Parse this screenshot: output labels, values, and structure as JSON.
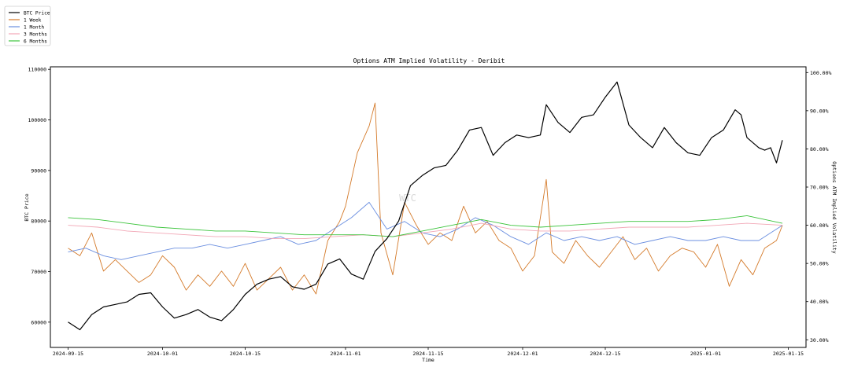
{
  "chart_data": {
    "type": "line",
    "title": "Options ATM Implied Volatility - Deribit",
    "xlabel": "Time",
    "ylabel_left": "BTC Price",
    "ylabel_right": "Options ATM Implied Volatility",
    "watermark": "WTC",
    "legend_position": "top-left",
    "grid": false,
    "x_range": [
      "2024-09-12",
      "2025-01-18"
    ],
    "left_ylim": [
      55000,
      110500
    ],
    "right_ylim": [
      28,
      101.5
    ],
    "x_ticks": [
      "2024-09-15",
      "2024-10-01",
      "2024-10-15",
      "2024-11-01",
      "2024-11-15",
      "2024-12-01",
      "2024-12-15",
      "2025-01-01",
      "2025-01-15"
    ],
    "left_ticks": [
      "60000",
      "70000",
      "80000",
      "90000",
      "100000",
      "110000"
    ],
    "right_ticks": [
      "30.00%",
      "40.00%",
      "50.00%",
      "60.00%",
      "70.00%",
      "80.00%",
      "90.00%",
      "100.00%"
    ],
    "series": [
      {
        "name": "BTC Price",
        "axis": "left",
        "color": "#000000",
        "points": [
          [
            "2024-09-15",
            60000
          ],
          [
            "2024-09-17",
            58500
          ],
          [
            "2024-09-19",
            61500
          ],
          [
            "2024-09-21",
            63000
          ],
          [
            "2024-09-23",
            63500
          ],
          [
            "2024-09-25",
            64000
          ],
          [
            "2024-09-27",
            65500
          ],
          [
            "2024-09-29",
            65800
          ],
          [
            "2024-10-01",
            63000
          ],
          [
            "2024-10-03",
            60800
          ],
          [
            "2024-10-05",
            61500
          ],
          [
            "2024-10-07",
            62500
          ],
          [
            "2024-10-09",
            61000
          ],
          [
            "2024-10-11",
            60300
          ],
          [
            "2024-10-13",
            62500
          ],
          [
            "2024-10-15",
            65500
          ],
          [
            "2024-10-17",
            67500
          ],
          [
            "2024-10-19",
            68500
          ],
          [
            "2024-10-21",
            69000
          ],
          [
            "2024-10-23",
            67000
          ],
          [
            "2024-10-25",
            66500
          ],
          [
            "2024-10-27",
            67500
          ],
          [
            "2024-10-29",
            71500
          ],
          [
            "2024-10-31",
            72500
          ],
          [
            "2024-11-02",
            69500
          ],
          [
            "2024-11-04",
            68500
          ],
          [
            "2024-11-06",
            74000
          ],
          [
            "2024-11-08",
            76500
          ],
          [
            "2024-11-10",
            80000
          ],
          [
            "2024-11-12",
            87000
          ],
          [
            "2024-11-14",
            89000
          ],
          [
            "2024-11-16",
            90500
          ],
          [
            "2024-11-18",
            91000
          ],
          [
            "2024-11-20",
            94000
          ],
          [
            "2024-11-22",
            98000
          ],
          [
            "2024-11-24",
            98500
          ],
          [
            "2024-11-26",
            93000
          ],
          [
            "2024-11-28",
            95500
          ],
          [
            "2024-11-30",
            97000
          ],
          [
            "2024-12-02",
            96500
          ],
          [
            "2024-12-04",
            97000
          ],
          [
            "2024-12-05",
            103000
          ],
          [
            "2024-12-07",
            99500
          ],
          [
            "2024-12-09",
            97500
          ],
          [
            "2024-12-11",
            100500
          ],
          [
            "2024-12-13",
            101000
          ],
          [
            "2024-12-15",
            104500
          ],
          [
            "2024-12-17",
            107500
          ],
          [
            "2024-12-19",
            99000
          ],
          [
            "2024-12-21",
            96500
          ],
          [
            "2024-12-23",
            94500
          ],
          [
            "2024-12-25",
            98500
          ],
          [
            "2024-12-27",
            95500
          ],
          [
            "2024-12-29",
            93500
          ],
          [
            "2024-12-31",
            93000
          ],
          [
            "2025-01-02",
            96500
          ],
          [
            "2025-01-04",
            98000
          ],
          [
            "2025-01-06",
            102000
          ],
          [
            "2025-01-07",
            101000
          ],
          [
            "2025-01-08",
            96500
          ],
          [
            "2025-01-10",
            94500
          ],
          [
            "2025-01-11",
            94000
          ],
          [
            "2025-01-12",
            94500
          ],
          [
            "2025-01-13",
            91500
          ],
          [
            "2025-01-14",
            96000
          ]
        ]
      },
      {
        "name": "1 Week",
        "axis": "right",
        "color": "#d47a2a",
        "points": [
          [
            "2024-09-15",
            54
          ],
          [
            "2024-09-17",
            52
          ],
          [
            "2024-09-19",
            58
          ],
          [
            "2024-09-21",
            48
          ],
          [
            "2024-09-23",
            51
          ],
          [
            "2024-09-25",
            48
          ],
          [
            "2024-09-27",
            45
          ],
          [
            "2024-09-29",
            47
          ],
          [
            "2024-10-01",
            52
          ],
          [
            "2024-10-03",
            49
          ],
          [
            "2024-10-05",
            43
          ],
          [
            "2024-10-07",
            47
          ],
          [
            "2024-10-09",
            44
          ],
          [
            "2024-10-11",
            48
          ],
          [
            "2024-10-13",
            44
          ],
          [
            "2024-10-15",
            50
          ],
          [
            "2024-10-17",
            43
          ],
          [
            "2024-10-19",
            46
          ],
          [
            "2024-10-21",
            49
          ],
          [
            "2024-10-23",
            43
          ],
          [
            "2024-10-25",
            47
          ],
          [
            "2024-10-27",
            42
          ],
          [
            "2024-10-29",
            56
          ],
          [
            "2024-10-31",
            61
          ],
          [
            "2024-11-01",
            65
          ],
          [
            "2024-11-03",
            79
          ],
          [
            "2024-11-05",
            86
          ],
          [
            "2024-11-06",
            92
          ],
          [
            "2024-11-07",
            58
          ],
          [
            "2024-11-09",
            47
          ],
          [
            "2024-11-11",
            66
          ],
          [
            "2024-11-13",
            60
          ],
          [
            "2024-11-15",
            55
          ],
          [
            "2024-11-17",
            58
          ],
          [
            "2024-11-19",
            56
          ],
          [
            "2024-11-21",
            65
          ],
          [
            "2024-11-23",
            58
          ],
          [
            "2024-11-25",
            61
          ],
          [
            "2024-11-27",
            56
          ],
          [
            "2024-11-29",
            54
          ],
          [
            "2024-12-01",
            48
          ],
          [
            "2024-12-03",
            52
          ],
          [
            "2024-12-05",
            72
          ],
          [
            "2024-12-06",
            53
          ],
          [
            "2024-12-08",
            50
          ],
          [
            "2024-12-10",
            56
          ],
          [
            "2024-12-12",
            52
          ],
          [
            "2024-12-14",
            49
          ],
          [
            "2024-12-16",
            53
          ],
          [
            "2024-12-18",
            57
          ],
          [
            "2024-12-20",
            51
          ],
          [
            "2024-12-22",
            54
          ],
          [
            "2024-12-24",
            48
          ],
          [
            "2024-12-26",
            52
          ],
          [
            "2024-12-28",
            54
          ],
          [
            "2024-12-30",
            53
          ],
          [
            "2025-01-01",
            49
          ],
          [
            "2025-01-03",
            55
          ],
          [
            "2025-01-05",
            44
          ],
          [
            "2025-01-07",
            51
          ],
          [
            "2025-01-09",
            47
          ],
          [
            "2025-01-11",
            54
          ],
          [
            "2025-01-13",
            56
          ],
          [
            "2025-01-14",
            60
          ]
        ]
      },
      {
        "name": "1 Month",
        "axis": "right",
        "color": "#6b8fe0",
        "points": [
          [
            "2024-09-15",
            53
          ],
          [
            "2024-09-18",
            54
          ],
          [
            "2024-09-21",
            52
          ],
          [
            "2024-09-24",
            51
          ],
          [
            "2024-09-27",
            52
          ],
          [
            "2024-09-30",
            53
          ],
          [
            "2024-10-03",
            54
          ],
          [
            "2024-10-06",
            54
          ],
          [
            "2024-10-09",
            55
          ],
          [
            "2024-10-12",
            54
          ],
          [
            "2024-10-15",
            55
          ],
          [
            "2024-10-18",
            56
          ],
          [
            "2024-10-21",
            57
          ],
          [
            "2024-10-24",
            55
          ],
          [
            "2024-10-27",
            56
          ],
          [
            "2024-10-30",
            59
          ],
          [
            "2024-11-02",
            62
          ],
          [
            "2024-11-05",
            66
          ],
          [
            "2024-11-08",
            59
          ],
          [
            "2024-11-11",
            61
          ],
          [
            "2024-11-14",
            58
          ],
          [
            "2024-11-17",
            57
          ],
          [
            "2024-11-20",
            59
          ],
          [
            "2024-11-23",
            62
          ],
          [
            "2024-11-26",
            60
          ],
          [
            "2024-11-29",
            57
          ],
          [
            "2024-12-02",
            55
          ],
          [
            "2024-12-05",
            58
          ],
          [
            "2024-12-08",
            56
          ],
          [
            "2024-12-11",
            57
          ],
          [
            "2024-12-14",
            56
          ],
          [
            "2024-12-17",
            57
          ],
          [
            "2024-12-20",
            55
          ],
          [
            "2024-12-23",
            56
          ],
          [
            "2024-12-26",
            57
          ],
          [
            "2024-12-29",
            56
          ],
          [
            "2025-01-01",
            56
          ],
          [
            "2025-01-04",
            57
          ],
          [
            "2025-01-07",
            56
          ],
          [
            "2025-01-10",
            56
          ],
          [
            "2025-01-14",
            60
          ]
        ]
      },
      {
        "name": "3 Months",
        "axis": "right",
        "color": "#f2a7b6",
        "points": [
          [
            "2024-09-15",
            60
          ],
          [
            "2024-09-20",
            59.5
          ],
          [
            "2024-09-25",
            58.5
          ],
          [
            "2024-09-30",
            58
          ],
          [
            "2024-10-05",
            57.5
          ],
          [
            "2024-10-10",
            57
          ],
          [
            "2024-10-15",
            57
          ],
          [
            "2024-10-20",
            56.5
          ],
          [
            "2024-10-25",
            56.5
          ],
          [
            "2024-10-30",
            57
          ],
          [
            "2024-11-04",
            57.5
          ],
          [
            "2024-11-09",
            57
          ],
          [
            "2024-11-14",
            58
          ],
          [
            "2024-11-19",
            59
          ],
          [
            "2024-11-24",
            60.5
          ],
          [
            "2024-11-29",
            59
          ],
          [
            "2024-12-04",
            58.5
          ],
          [
            "2024-12-09",
            58.5
          ],
          [
            "2024-12-14",
            59
          ],
          [
            "2024-12-19",
            59.5
          ],
          [
            "2024-12-24",
            59.5
          ],
          [
            "2024-12-29",
            59.5
          ],
          [
            "2025-01-03",
            60
          ],
          [
            "2025-01-08",
            60.5
          ],
          [
            "2025-01-14",
            60
          ]
        ]
      },
      {
        "name": "6 Months",
        "axis": "right",
        "color": "#3cc43c",
        "points": [
          [
            "2024-09-15",
            62
          ],
          [
            "2024-09-20",
            61.5
          ],
          [
            "2024-09-25",
            60.5
          ],
          [
            "2024-09-30",
            59.5
          ],
          [
            "2024-10-05",
            59
          ],
          [
            "2024-10-10",
            58.5
          ],
          [
            "2024-10-15",
            58.5
          ],
          [
            "2024-10-20",
            58
          ],
          [
            "2024-10-25",
            57.5
          ],
          [
            "2024-10-30",
            57.5
          ],
          [
            "2024-11-04",
            57.5
          ],
          [
            "2024-11-09",
            57
          ],
          [
            "2024-11-14",
            58.5
          ],
          [
            "2024-11-19",
            60
          ],
          [
            "2024-11-24",
            61.5
          ],
          [
            "2024-11-29",
            60
          ],
          [
            "2024-12-04",
            59.5
          ],
          [
            "2024-12-09",
            60
          ],
          [
            "2024-12-14",
            60.5
          ],
          [
            "2024-12-19",
            61
          ],
          [
            "2024-12-24",
            61
          ],
          [
            "2024-12-29",
            61
          ],
          [
            "2025-01-03",
            61.5
          ],
          [
            "2025-01-08",
            62.5
          ],
          [
            "2025-01-14",
            60.5
          ]
        ]
      }
    ]
  }
}
